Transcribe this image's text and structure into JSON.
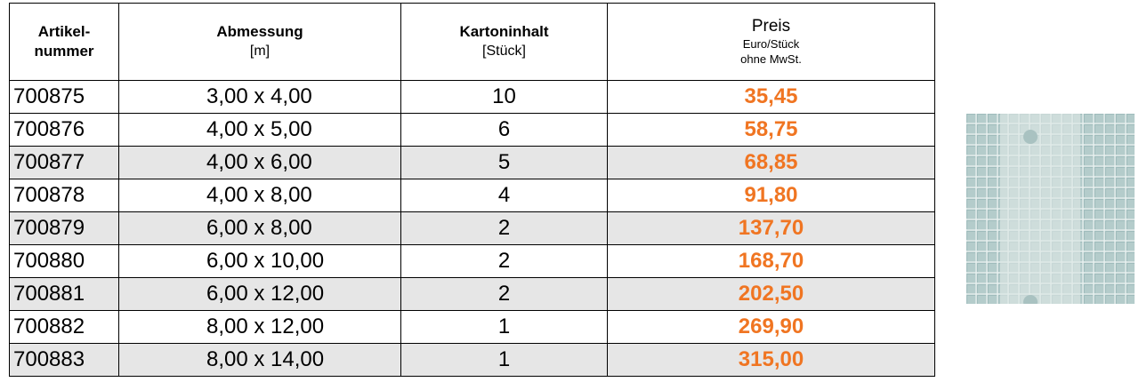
{
  "header": [
    [
      "Artikel-",
      "nummer"
    ],
    [
      "Abmessung",
      "[m]"
    ],
    [
      "Kartoninhalt",
      "[Stück]"
    ],
    [
      "Preis",
      "Euro/Stück",
      "ohne MwSt."
    ]
  ],
  "rows": [
    [
      "700875",
      "3,00 x 4,00",
      "10",
      "35,45"
    ],
    [
      "700876",
      "4,00 x 5,00",
      "6",
      "58,75"
    ],
    [
      "700877",
      "4,00 x 6,00",
      "5",
      "68,85"
    ],
    [
      "700878",
      "4,00 x 8,00",
      "4",
      "91,80"
    ],
    [
      "700879",
      "6,00 x 8,00",
      "2",
      "137,70"
    ],
    [
      "700880",
      "6,00 x 10,00",
      "2",
      "168,70"
    ],
    [
      "700881",
      "6,00 x 12,00",
      "2",
      "202,50"
    ],
    [
      "700882",
      "8,00 x 12,00",
      "1",
      "269,90"
    ],
    [
      "700883",
      "8,00 x 14,00",
      "1",
      "315,00"
    ]
  ]
}
